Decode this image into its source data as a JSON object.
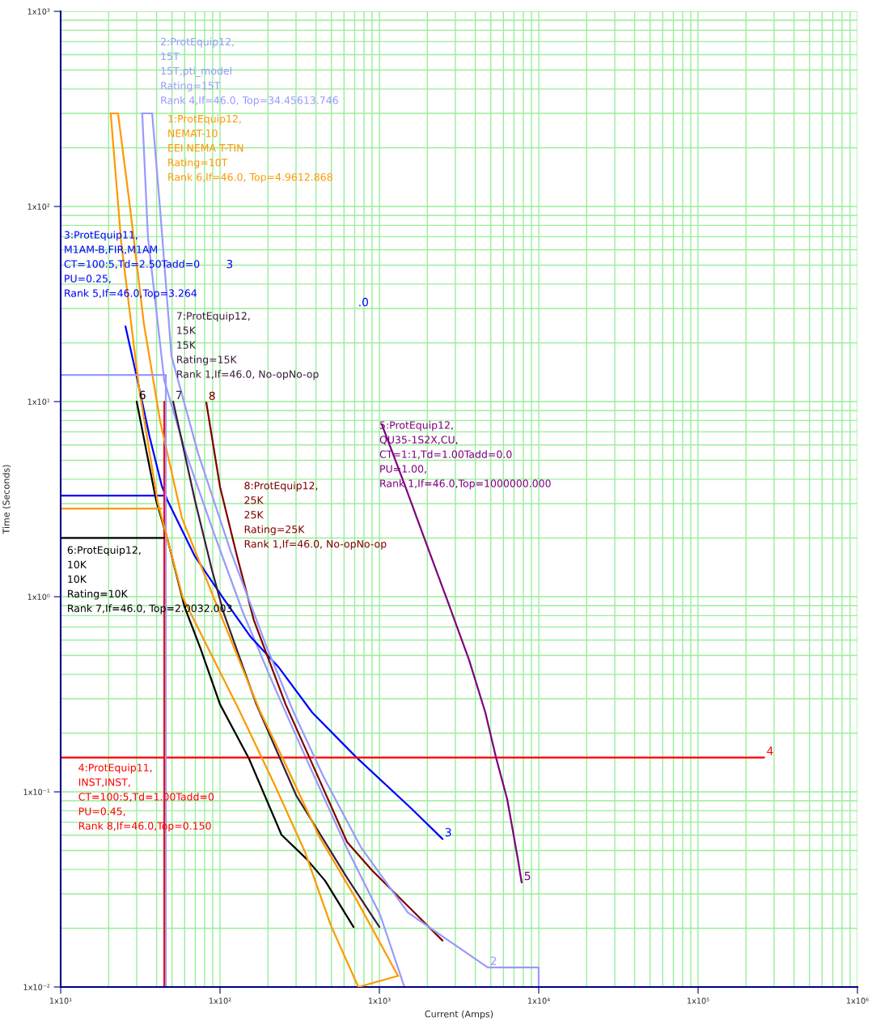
{
  "chart_data": {
    "type": "line",
    "xlabel": "Current (Amps)",
    "ylabel": "Time (Seconds)",
    "log": "xy",
    "grid": true,
    "xlim": [
      10,
      1000000
    ],
    "ylim": [
      0.01,
      1000
    ],
    "xticks": [
      {
        "value": 10,
        "label": "1x10¹"
      },
      {
        "value": 100,
        "label": "1x10²"
      },
      {
        "value": 1000,
        "label": "1x10³"
      },
      {
        "value": 10000,
        "label": "1x10⁴"
      },
      {
        "value": 100000,
        "label": "1x10⁵"
      },
      {
        "value": 1000000,
        "label": "1x10⁶"
      }
    ],
    "yticks": [
      {
        "value": 0.01,
        "label": "1x10⁻²"
      },
      {
        "value": 0.1,
        "label": "1x10⁻¹"
      },
      {
        "value": 1,
        "label": "1x10⁰"
      },
      {
        "value": 10,
        "label": "1x10¹"
      },
      {
        "value": 100,
        "label": "1x10²"
      },
      {
        "value": 1000,
        "label": "1x10³"
      }
    ],
    "series": [
      {
        "name": "1:ProtEquip12,\nNEMAT-10\nEEI NEMA T-TIN\nRating=10T\nRank 6,If=46.0, Top=4.9612.868",
        "color": "#ff9900",
        "x": [
          20.6,
          24.0,
          31.1,
          40.6,
          58.4,
          132,
          221,
          341,
          496,
          738,
          1309
        ],
        "values": [
          300,
          65.1,
          11.6,
          3.06,
          0.99,
          0.262,
          0.108,
          0.0493,
          0.0207,
          0.01,
          0.0114
        ]
      },
      {
        "name": "2:ProtEquip12,\n15T\n15T,pti_model\nRating=15T\nRank 4,If=46.0, Top=34.45613.746",
        "color": "#9999ff",
        "x": [
          32.5,
          35.3,
          44.7,
          61.2,
          92.1,
          139,
          221,
          353,
          634,
          1012,
          1436,
          10000
        ],
        "values": [
          300,
          69.6,
          12.8,
          5.42,
          2.09,
          0.834,
          0.34,
          0.144,
          0.0503,
          0.0234,
          0.01,
          0.01
        ]
      },
      {
        "name": "3:ProtEquip11,\nM1AM-B,FIR,M1AM\nCT=100:5,Td=2.50Tadd=0\nPU=0.25,\nRank 5,If=46.0,Top=3.264",
        "color": "#0000ff",
        "x": [
          25.5,
          30.4,
          36.2,
          43.1,
          46.8,
          69.6,
          105,
          156,
          235,
          379,
          713,
          1596,
          2489,
          null,
          10,
          44.7
        ],
        "values": [
          24.3,
          12.8,
          6.57,
          3.7,
          3.12,
          1.61,
          0.98,
          0.621,
          0.432,
          0.255,
          0.151,
          0.0818,
          0.0574,
          null,
          3.3,
          3.3
        ]
      },
      {
        "name": "4:ProtEquip11,\nINST,INST,\nCT=100:5,Td=1.00Tadd=0\nPU=0.45,\nRank 8,If=46.0,Top=0.150",
        "color": "#ff0000",
        "x": [
          44.7,
          44.7,
          null,
          10,
          260000
        ],
        "values": [
          10,
          0.01,
          null,
          0.15,
          0.15
        ]
      },
      {
        "name": "5:ProtEquip12,\nQU35-1S2X,CU,\nCT=1:1,Td=1.00Tadd=0.0\nPU=1.00,\nRank 1,If=46.0,Top=1000000.000",
        "color": "#800080",
        "x": [
          1036,
          1436,
          2042,
          2733,
          3656,
          4624,
          5383,
          6339,
          6792,
          7379,
          7816
        ],
        "values": [
          7.65,
          3.78,
          1.73,
          0.909,
          0.474,
          0.255,
          0.151,
          0.0918,
          0.067,
          0.0457,
          0.0343
        ]
      },
      {
        "name": "6:ProtEquip12,\n10K\n10K\nRating=10K\nRank 7,If=46.0, Top=2.0032.003",
        "color": "#000000",
        "x": [
          30.0,
          39.7,
          46.8,
          59.8,
          75.5,
          100,
          152,
          243,
          349,
          457,
          688,
          null,
          10,
          44.7
        ],
        "values": [
          10,
          3.12,
          1.97,
          0.891,
          0.542,
          0.281,
          0.148,
          0.0603,
          0.0453,
          0.035,
          0.0203,
          null,
          2.0,
          2.0
        ]
      },
      {
        "name": "7:ProtEquip12,\n15K\n15K\nRating=15K\nRank 1,If=46.0, No-opNo-op",
        "color": "#3a1f3a",
        "x": [
          50.8,
          69.6,
          89.0,
          105,
          169,
          300,
          627,
          1000
        ],
        "values": [
          10,
          3.12,
          1.37,
          0.834,
          0.281,
          0.0962,
          0.0363,
          0.0203
        ]
      },
      {
        "name": "8:ProtEquip12,\n25K\n25K\nRating=25K\nRank 1,If=46.0, No-opNo-op",
        "color": "#800000",
        "x": [
          82.0,
          100,
          128,
          163,
          199,
          258,
          411,
          627,
          900,
          2489
        ],
        "values": [
          9.9,
          3.66,
          1.61,
          0.759,
          0.493,
          0.281,
          0.12,
          0.0553,
          0.0396,
          0.0173
        ]
      },
      {
        "color": "#ff9900",
        "x": [
          20.6,
          22.9,
          27.0,
          33.3,
          42.1,
          57.7,
          92.1,
          177,
          249,
          421,
          713,
          1309
        ],
        "values": [
          300,
          300,
          105,
          25.0,
          7.94,
          2.53,
          0.972,
          0.262,
          0.147,
          0.0586,
          0.0283,
          0.0114
        ]
      },
      {
        "color": "#ff9900",
        "x": [
          10,
          43.1
        ],
        "values": [
          2.83,
          2.83
        ]
      },
      {
        "color": "#9999ff",
        "x": [
          32.5,
          37.5,
          42.1,
          49.6,
          72.9,
          116,
          197,
          286,
          447,
          764,
          1507,
          4786,
          10000,
          10000
        ],
        "values": [
          300,
          300,
          96.2,
          17.1,
          5.42,
          1.73,
          0.548,
          0.262,
          0.119,
          0.0522,
          0.0241,
          0.0126,
          0.0126,
          0.01
        ]
      },
      {
        "color": "#9999ff",
        "x": [
          10,
          45.7,
          45.7
        ],
        "values": [
          13.7,
          13.7,
          0.01
        ]
      }
    ],
    "annotations": [
      {
        "text": "6",
        "x": 30.0,
        "y": 10
      },
      {
        "text": "7",
        "x": 50.8,
        "y": 10
      },
      {
        "text": "8",
        "x": 82.0,
        "y": 9.9
      },
      {
        "text": "3",
        "x": 2489,
        "y": 0.0574
      },
      {
        "text": "5",
        "x": 7816,
        "y": 0.0343
      },
      {
        "text": "4",
        "x": 260000,
        "y": 0.15
      },
      {
        "text": "2",
        "x": 4786,
        "y": 0.0126
      },
      "3",
      ".0"
    ]
  }
}
